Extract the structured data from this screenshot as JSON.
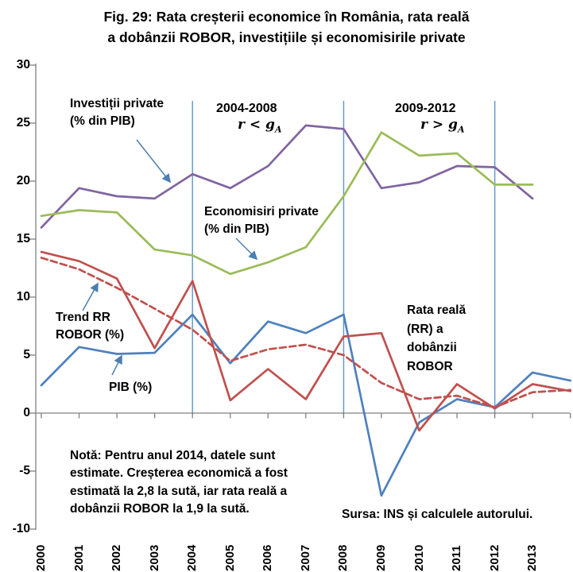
{
  "title": {
    "line1": "Fig. 29: Rata creșterii economice în România, rata reală",
    "line2": "a dobânzii ROBOR, investițiile și economisirile private"
  },
  "annotations": {
    "investitii": {
      "line1": "Investiții private",
      "line2": "(% din PIB)"
    },
    "economisiri": {
      "line1": "Economisiri private",
      "line2": "(% din PIB)"
    },
    "trend": {
      "line1": "Trend RR",
      "line2": "ROBOR (%)"
    },
    "pib": {
      "label": "PIB (%)"
    },
    "rata_reala": {
      "line1": "Rata reală",
      "line2": "(RR) a",
      "line3": "dobânzii",
      "line4": "ROBOR"
    },
    "period1": {
      "label": "2004-2008",
      "expr": "r < g",
      "sub": "A"
    },
    "period2": {
      "label": "2009-2012",
      "expr": "r > g",
      "sub": "A"
    }
  },
  "note": {
    "line1": "Notă: Pentru anul 2014, datele sunt",
    "line2": "estimate. Creșterea economică a fost",
    "line3": "estimată la 2,8 la sută, iar rata reală a",
    "line4": "dobânzii ROBOR la 1,9 la sută."
  },
  "source": "Sursa: INS și calculele autorului.",
  "chart_data": {
    "type": "line",
    "title": "Fig. 29: Rata creșterii economice în România, rata reală a dobânzii ROBOR, investițiile și economisirile private",
    "x_years": [
      2000,
      2001,
      2002,
      2003,
      2004,
      2005,
      2006,
      2007,
      2008,
      2009,
      2010,
      2011,
      2012,
      2013,
      2014
    ],
    "x_tick_labels": [
      "2000",
      "2001",
      "2002",
      "2003",
      "2004",
      "2005",
      "2006",
      "2007",
      "2008",
      "2009",
      "2010",
      "2011",
      "2012",
      "2013"
    ],
    "ylim": [
      -10,
      30
    ],
    "yticks": [
      30,
      25,
      20,
      15,
      10,
      5,
      0,
      -5,
      -10
    ],
    "grid": false,
    "legend": "inline-annotations",
    "vertical_lines_years": [
      2004,
      2008,
      2012
    ],
    "series": [
      {
        "name": "Investiții private (% din PIB)",
        "color": "#8064A2",
        "dash": false,
        "values": [
          16.0,
          19.4,
          18.7,
          18.5,
          20.6,
          19.4,
          21.3,
          24.8,
          24.5,
          19.4,
          19.9,
          21.3,
          21.2,
          18.5,
          null
        ]
      },
      {
        "name": "Economisiri private (% din PIB)",
        "color": "#9BBB59",
        "dash": false,
        "values": [
          17.0,
          17.5,
          17.3,
          14.1,
          13.6,
          12.0,
          13.0,
          14.3,
          18.7,
          24.2,
          22.2,
          22.4,
          19.7,
          19.7,
          null
        ]
      },
      {
        "name": "PIB (%)",
        "color": "#4F81BD",
        "dash": false,
        "values": [
          2.4,
          5.7,
          5.1,
          5.2,
          8.5,
          4.3,
          7.9,
          6.9,
          8.5,
          -7.1,
          -0.8,
          1.2,
          0.5,
          3.5,
          2.8
        ]
      },
      {
        "name": "Rata reală (RR) a dobânzii ROBOR",
        "color": "#C0504D",
        "dash": false,
        "values": [
          13.9,
          13.1,
          11.6,
          5.6,
          11.4,
          1.1,
          3.8,
          1.2,
          6.6,
          6.9,
          -1.5,
          2.5,
          0.4,
          2.5,
          1.9
        ]
      },
      {
        "name": "Trend RR ROBOR (%)",
        "color": "#C0504D",
        "dash": true,
        "values": [
          13.4,
          12.4,
          10.8,
          9.0,
          7.2,
          4.5,
          5.5,
          5.9,
          5.0,
          2.6,
          1.2,
          1.5,
          0.5,
          1.8,
          2.0
        ]
      }
    ],
    "axis_color": "#808080",
    "vline_color": "#699BC8",
    "arrow_color": "#4C7FB0"
  }
}
